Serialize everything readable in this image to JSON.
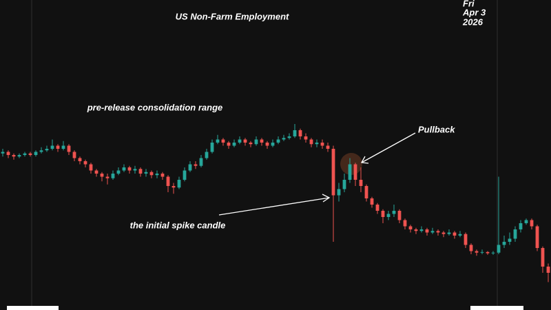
{
  "chart_data": {
    "type": "candlestick",
    "title": "US Non-Farm Employment",
    "date_label": [
      "Fri",
      "Apr 3",
      "2026"
    ],
    "annotations": [
      "pre-release consolidation range",
      "Pullback",
      "the initial spike candle"
    ],
    "up_color": "#26a69a",
    "down_color": "#ef5350",
    "ylim": [
      0,
      100
    ],
    "open": [
      50.5,
      51,
      50,
      49.5,
      50,
      50.5,
      50,
      51,
      51.5,
      52,
      53,
      52,
      53,
      51,
      49,
      48,
      47,
      45,
      44,
      43,
      42.5,
      44,
      45,
      46,
      45,
      45.5,
      44,
      44.5,
      43.5,
      44,
      43,
      40,
      39.5,
      42,
      45,
      47,
      46.5,
      49,
      51,
      54,
      55,
      54,
      53,
      54,
      55,
      54,
      53.5,
      55,
      54,
      53,
      54,
      55,
      55.5,
      56,
      58,
      56,
      55,
      53.5,
      54,
      53,
      52,
      37,
      39,
      42,
      47,
      42,
      40,
      36,
      34,
      32,
      30,
      31,
      32,
      29,
      27,
      26,
      25.5,
      26,
      25,
      25.5,
      25,
      24.5,
      25,
      24,
      24.5,
      21,
      19,
      18.5,
      18.7,
      18.3,
      18.5,
      21,
      22,
      23,
      26,
      28,
      29,
      27,
      20,
      14
    ],
    "high": [
      52,
      51.5,
      50.5,
      50.5,
      51,
      51,
      51.5,
      52.5,
      53,
      55,
      53.5,
      54.5,
      53.5,
      51.5,
      49.5,
      48.5,
      47.5,
      45.5,
      44.5,
      44,
      45,
      46,
      47,
      46.5,
      46.5,
      46,
      45.5,
      45,
      45,
      44.5,
      43.5,
      41,
      43,
      46,
      48,
      48,
      50,
      52,
      55,
      56.5,
      55.5,
      54.5,
      55,
      56,
      55.5,
      54.5,
      56,
      55.5,
      54.5,
      55,
      56,
      56.5,
      57,
      60,
      58.5,
      57,
      55.5,
      55,
      55,
      54,
      53,
      41,
      44,
      49,
      47.5,
      46,
      40.5,
      36.5,
      34.5,
      32.5,
      32,
      34,
      32.5,
      29.5,
      27.5,
      26.5,
      27,
      26.5,
      26.5,
      26,
      25.5,
      26,
      25.5,
      25.5,
      25,
      21.5,
      19.5,
      19.5,
      19,
      19,
      43,
      24,
      25,
      27,
      29,
      29.5,
      29.5,
      27.5,
      20.5,
      15
    ],
    "low": [
      49.5,
      49,
      48.5,
      49,
      49.5,
      49.5,
      49.5,
      50.5,
      51,
      51.5,
      51,
      51.5,
      50,
      48,
      47,
      46,
      44,
      43,
      41.5,
      40.5,
      42,
      43.5,
      44.5,
      44,
      44,
      43,
      43,
      42.5,
      42.5,
      42,
      38,
      37.5,
      39,
      41.5,
      44.5,
      45.5,
      46,
      48.5,
      50.5,
      53.5,
      53,
      52,
      52.5,
      53.5,
      53,
      52.5,
      53,
      53,
      52,
      52.5,
      53.5,
      54.5,
      55,
      55.5,
      55,
      54,
      52.5,
      52.5,
      52,
      51,
      22,
      35,
      38,
      41,
      40,
      38,
      35,
      33,
      31,
      28,
      29,
      30,
      28,
      26,
      25,
      24.5,
      25,
      24,
      24.5,
      24,
      23.5,
      24,
      23,
      23.5,
      20,
      18,
      17.5,
      18,
      17.8,
      17.8,
      18,
      20,
      21,
      22,
      25,
      27.5,
      26,
      19,
      12,
      9
    ],
    "close": [
      51,
      50,
      49.5,
      50,
      50.5,
      50,
      51,
      51.5,
      52,
      53,
      52,
      53,
      51,
      49,
      48,
      47,
      45,
      44,
      43,
      42.5,
      44,
      45,
      46,
      45,
      45.5,
      44,
      44.5,
      43.5,
      44,
      43,
      40,
      39.5,
      42,
      45,
      47,
      46.5,
      49,
      51,
      54,
      55,
      54,
      53,
      54,
      55,
      54,
      53.5,
      55,
      54,
      53,
      54,
      55,
      55.5,
      56,
      58,
      56,
      55,
      53.5,
      54,
      53,
      52,
      37,
      39,
      42,
      47,
      42,
      40,
      36,
      34,
      32,
      30,
      31,
      32,
      29,
      27,
      26,
      25.5,
      26,
      25,
      25.5,
      25,
      24.5,
      25,
      24,
      24.5,
      21,
      19,
      18.5,
      18.7,
      18.3,
      18.5,
      21,
      22,
      23,
      26,
      28,
      29,
      27,
      20,
      14,
      12
    ]
  }
}
